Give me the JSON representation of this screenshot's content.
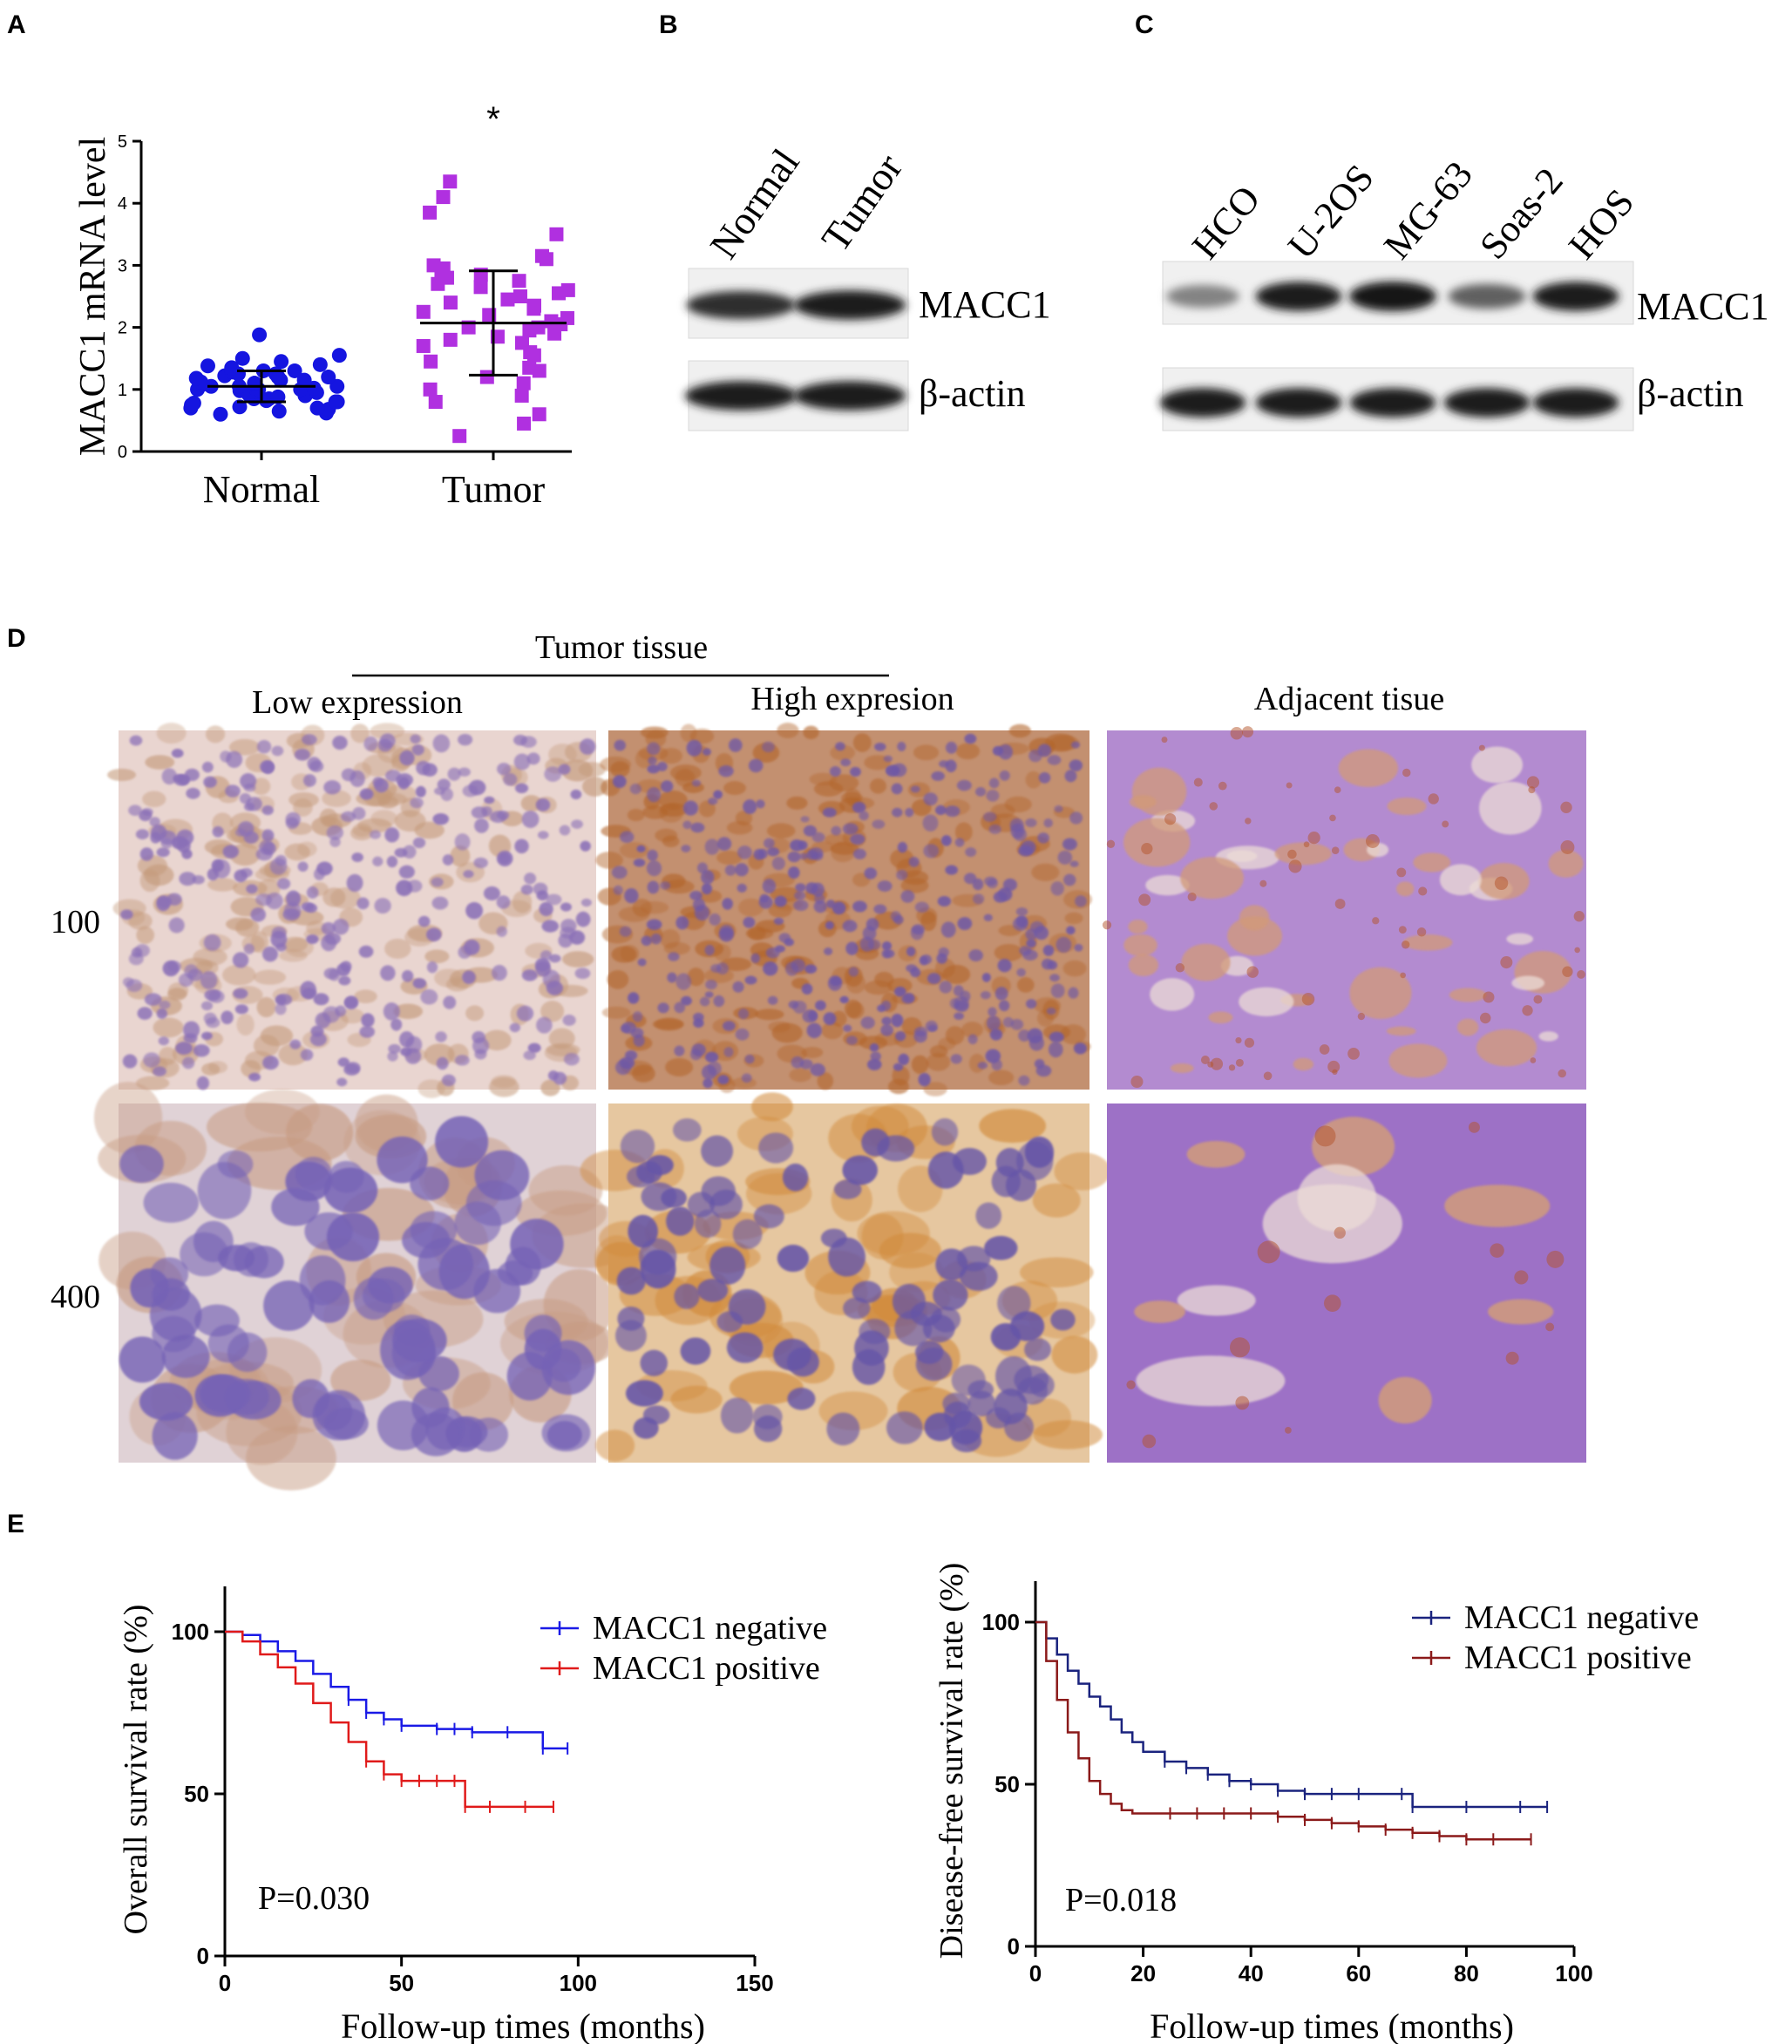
{
  "panels": {
    "A": "A",
    "B": "B",
    "C": "C",
    "D": "D",
    "E": "E"
  },
  "panel_a": {
    "significance": "*",
    "chart_data": {
      "type": "scatter",
      "title": "",
      "xlabel": "",
      "ylabel": "MACC1 mRNA level",
      "categories": [
        "Normal",
        "Tumor"
      ],
      "ylim": [
        0,
        5
      ],
      "yticks": [
        "0",
        "1",
        "2",
        "3",
        "4",
        "5"
      ],
      "series": [
        {
          "name": "Normal",
          "color": "#1515e0",
          "marker": "circle",
          "mean": 1.05,
          "sd": 0.25,
          "values": [
            0.6,
            0.62,
            0.65,
            0.68,
            0.7,
            0.7,
            0.72,
            0.75,
            0.78,
            0.8,
            0.8,
            0.82,
            0.85,
            0.85,
            0.88,
            0.9,
            0.9,
            0.92,
            0.95,
            0.95,
            0.98,
            1.0,
            1.0,
            1.0,
            1.02,
            1.05,
            1.05,
            1.05,
            1.08,
            1.1,
            1.1,
            1.1,
            1.12,
            1.15,
            1.15,
            1.18,
            1.2,
            1.2,
            1.22,
            1.25,
            1.25,
            1.28,
            1.3,
            1.3,
            1.35,
            1.38,
            1.4,
            1.45,
            1.5,
            1.55,
            1.88
          ]
        },
        {
          "name": "Tumor",
          "color": "#b030e0",
          "marker": "square",
          "mean": 2.07,
          "sd": 0.84,
          "values": [
            0.25,
            0.45,
            0.6,
            0.8,
            0.9,
            1.0,
            1.1,
            1.2,
            1.3,
            1.35,
            1.45,
            1.55,
            1.6,
            1.7,
            1.75,
            1.8,
            1.85,
            1.9,
            1.95,
            2.0,
            2.0,
            2.05,
            2.1,
            2.15,
            2.2,
            2.25,
            2.3,
            2.35,
            2.4,
            2.45,
            2.5,
            2.55,
            2.6,
            2.65,
            2.7,
            2.75,
            2.8,
            2.85,
            2.9,
            2.95,
            3.0,
            3.1,
            3.15,
            3.5,
            3.85,
            4.1,
            4.35
          ]
        }
      ]
    }
  },
  "panel_b": {
    "lanes": [
      "Normal",
      "Tumor"
    ],
    "bands": [
      "MACC1",
      "β-actin"
    ],
    "intensity": {
      "MACC1": [
        0.85,
        0.95
      ],
      "β-actin": [
        0.95,
        0.95
      ]
    }
  },
  "panel_c": {
    "lanes": [
      "HCO",
      "U-2OS",
      "MG-63",
      "Soas-2",
      "HOS"
    ],
    "bands": [
      "MACC1",
      "β-actin"
    ],
    "intensity": {
      "MACC1": [
        0.35,
        0.95,
        1.0,
        0.55,
        0.95
      ],
      "β-actin": [
        0.95,
        0.95,
        0.95,
        0.95,
        0.95
      ]
    }
  },
  "panel_d": {
    "group_label": "Tumor tissue",
    "columns": [
      "Low expression",
      "High expresion",
      "Adjacent tisue"
    ],
    "rows": [
      "100",
      "400"
    ]
  },
  "panel_e": {
    "chart_data": [
      {
        "type": "line",
        "title": "",
        "xlabel": "Follow-up times (months)",
        "ylabel": "Overall survival rate (%)",
        "xlim": [
          0,
          150
        ],
        "ylim": [
          0,
          100
        ],
        "xticks": [
          "0",
          "50",
          "100",
          "150"
        ],
        "yticks": [
          "0",
          "50",
          "100"
        ],
        "annotation": "P=0.030",
        "legend": "top-right",
        "series": [
          {
            "name": "MACC1 negative",
            "color": "#1a1ae6",
            "x": [
              0,
              5,
              10,
              15,
              20,
              25,
              30,
              35,
              40,
              45,
              50,
              60,
              65,
              70,
              80,
              90,
              97
            ],
            "y": [
              100,
              99,
              97,
              94,
              91,
              87,
              83,
              79,
              75,
              73,
              71,
              70,
              70,
              69,
              69,
              64,
              64
            ]
          },
          {
            "name": "MACC1 positive",
            "color": "#e01a1a",
            "x": [
              0,
              5,
              10,
              15,
              20,
              25,
              30,
              35,
              40,
              45,
              50,
              55,
              60,
              65,
              68,
              75,
              85,
              93
            ],
            "y": [
              100,
              97,
              93,
              89,
              84,
              78,
              72,
              66,
              60,
              56,
              54,
              54,
              54,
              54,
              46,
              46,
              46,
              46
            ]
          }
        ]
      },
      {
        "type": "line",
        "title": "",
        "xlabel": "Follow-up times (months)",
        "ylabel": "Disease-free survival rate (%)",
        "xlim": [
          0,
          100
        ],
        "ylim": [
          0,
          100
        ],
        "xticks": [
          "0",
          "20",
          "40",
          "60",
          "80",
          "100"
        ],
        "yticks": [
          "0",
          "50",
          "100"
        ],
        "annotation": "P=0.018",
        "legend": "top-right",
        "series": [
          {
            "name": "MACC1 negative",
            "color": "#1a237e",
            "x": [
              0,
              2,
              4,
              6,
              8,
              10,
              12,
              14,
              16,
              18,
              20,
              24,
              28,
              32,
              36,
              40,
              45,
              50,
              55,
              60,
              68,
              70,
              80,
              90,
              95
            ],
            "y": [
              100,
              95,
              90,
              85,
              81,
              77,
              74,
              70,
              66,
              63,
              60,
              57,
              55,
              53,
              51,
              50,
              48,
              47,
              47,
              47,
              47,
              43,
              43,
              43,
              43
            ]
          },
          {
            "name": "MACC1 positive",
            "color": "#8b1a1a",
            "x": [
              0,
              2,
              4,
              6,
              8,
              10,
              12,
              14,
              16,
              18,
              20,
              25,
              30,
              35,
              40,
              45,
              50,
              55,
              60,
              65,
              70,
              75,
              80,
              85,
              92
            ],
            "y": [
              100,
              88,
              76,
              66,
              58,
              51,
              47,
              44,
              42,
              41,
              41,
              41,
              41,
              41,
              41,
              40,
              39,
              38,
              37,
              36,
              35,
              34,
              33,
              33,
              33
            ]
          }
        ]
      }
    ]
  }
}
